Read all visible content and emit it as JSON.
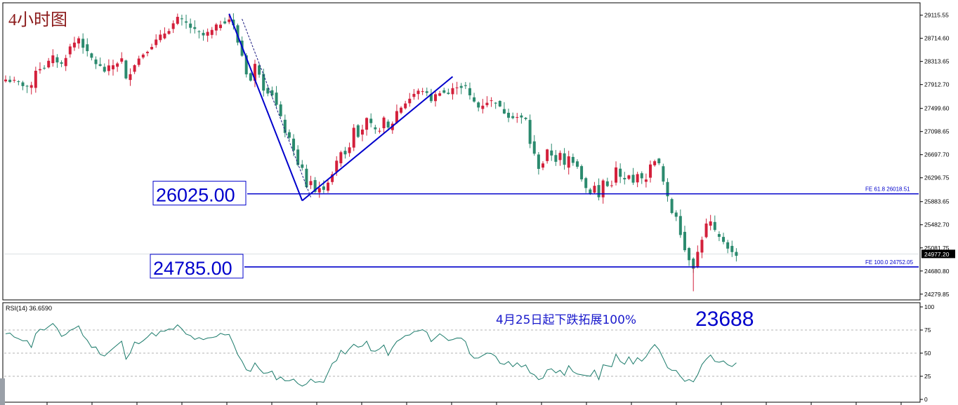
{
  "chart_data": {
    "type": "candlestick",
    "title": "4小时图",
    "price_axis": {
      "ticks": [
        "29115.55",
        "28714.60",
        "28313.65",
        "27912.70",
        "27499.60",
        "27098.65",
        "26697.70",
        "26296.75",
        "25883.65",
        "25482.70",
        "25081.75",
        "24680.80",
        "24279.85"
      ],
      "range": [
        24180,
        29330
      ],
      "current_price": "24977.20",
      "current_value": 24977.2
    },
    "fe_levels": [
      {
        "label": "FE 61.8  26018.51",
        "value": 26018.51,
        "box_label": "26025.00"
      },
      {
        "label": "FE 100.0  24752.05",
        "value": 24752.05,
        "box_label": "24785.00"
      }
    ],
    "annotation": "4月25日起下跌拓展100%",
    "target_label": "23688",
    "price_path": [
      [
        0,
        28000
      ],
      [
        3,
        27940
      ],
      [
        5,
        27880
      ],
      [
        6,
        27860
      ],
      [
        7,
        28180
      ],
      [
        9,
        28220
      ],
      [
        11,
        28380
      ],
      [
        13,
        28260
      ],
      [
        15,
        28560
      ],
      [
        17,
        28720
      ],
      [
        19,
        28450
      ],
      [
        21,
        28280
      ],
      [
        23,
        28150
      ],
      [
        25,
        28250
      ],
      [
        27,
        28350
      ],
      [
        28,
        27990
      ],
      [
        30,
        28280
      ],
      [
        32,
        28450
      ],
      [
        34,
        28600
      ],
      [
        36,
        28740
      ],
      [
        38,
        28880
      ],
      [
        40,
        29050
      ],
      [
        42,
        28970
      ],
      [
        44,
        28840
      ],
      [
        46,
        28760
      ],
      [
        48,
        28840
      ],
      [
        50,
        28980
      ],
      [
        52,
        29050
      ],
      [
        53,
        28920
      ],
      [
        54,
        28650
      ],
      [
        55,
        28420
      ],
      [
        56,
        28120
      ],
      [
        57,
        27980
      ],
      [
        58,
        28250
      ],
      [
        59,
        28120
      ],
      [
        60,
        27850
      ],
      [
        62,
        27750
      ],
      [
        63,
        27550
      ],
      [
        65,
        27100
      ],
      [
        67,
        26800
      ],
      [
        68,
        26500
      ],
      [
        69,
        26450
      ],
      [
        70,
        26150
      ],
      [
        71,
        26250
      ],
      [
        72,
        26050
      ],
      [
        73,
        26150
      ],
      [
        74,
        26050
      ],
      [
        75,
        26250
      ],
      [
        76,
        26380
      ],
      [
        77,
        26550
      ],
      [
        78,
        26780
      ],
      [
        79,
        26720
      ],
      [
        80,
        26850
      ],
      [
        81,
        27200
      ],
      [
        82,
        27050
      ],
      [
        83,
        27150
      ],
      [
        84,
        27300
      ],
      [
        85,
        27200
      ],
      [
        86,
        27100
      ],
      [
        87,
        27150
      ],
      [
        88,
        27300
      ],
      [
        89,
        27150
      ],
      [
        90,
        27250
      ],
      [
        91,
        27450
      ],
      [
        93,
        27600
      ],
      [
        95,
        27750
      ],
      [
        97,
        27820
      ],
      [
        99,
        27650
      ],
      [
        101,
        27800
      ],
      [
        103,
        27750
      ],
      [
        105,
        27900
      ],
      [
        106,
        27880
      ],
      [
        107,
        27870
      ],
      [
        108,
        27700
      ],
      [
        110,
        27520
      ],
      [
        112,
        27620
      ],
      [
        114,
        27620
      ],
      [
        115,
        27500
      ],
      [
        117,
        27380
      ],
      [
        119,
        27350
      ],
      [
        121,
        27300
      ],
      [
        122,
        26900
      ],
      [
        124,
        26480
      ],
      [
        125,
        26560
      ],
      [
        126,
        26750
      ],
      [
        127,
        26700
      ],
      [
        128,
        26600
      ],
      [
        129,
        26700
      ],
      [
        130,
        26500
      ],
      [
        131,
        26660
      ],
      [
        133,
        26520
      ],
      [
        134,
        26300
      ],
      [
        135,
        26120
      ],
      [
        136,
        26050
      ],
      [
        137,
        26150
      ],
      [
        138,
        25950
      ],
      [
        139,
        26250
      ],
      [
        140,
        26150
      ],
      [
        141,
        26200
      ],
      [
        142,
        26450
      ],
      [
        143,
        26300
      ],
      [
        144,
        26250
      ],
      [
        145,
        26320
      ],
      [
        146,
        26200
      ],
      [
        147,
        26400
      ],
      [
        148,
        26250
      ],
      [
        149,
        26300
      ],
      [
        150,
        26500
      ],
      [
        151,
        26620
      ],
      [
        152,
        26520
      ],
      [
        153,
        26220
      ],
      [
        154,
        25940
      ],
      [
        155,
        25700
      ],
      [
        156,
        25650
      ],
      [
        158,
        25050
      ],
      [
        159,
        24900
      ],
      [
        160,
        24760
      ],
      [
        161,
        25000
      ],
      [
        162,
        25250
      ],
      [
        163,
        25480
      ],
      [
        164,
        25520
      ],
      [
        165,
        25350
      ],
      [
        166,
        25250
      ],
      [
        167,
        25200
      ],
      [
        168,
        25100
      ],
      [
        169,
        24990
      ],
      [
        170,
        24977
      ]
    ],
    "drawn_lines": [
      {
        "name": "down-trend-line",
        "points": [
          [
            52,
            29140
          ],
          [
            69,
            25900
          ]
        ]
      },
      {
        "name": "up-trend-line",
        "points": [
          [
            69,
            25900
          ],
          [
            104,
            28050
          ]
        ]
      },
      {
        "name": "dashed-trend-line",
        "points": [
          [
            55,
            29050
          ],
          [
            71,
            25960
          ]
        ]
      }
    ],
    "rsi": {
      "label": "RSI(14) 36.6590",
      "ticks": [
        "100",
        "75",
        "50",
        "25",
        "0"
      ],
      "levels": [
        75,
        50,
        25
      ],
      "values": [
        [
          0,
          70
        ],
        [
          3,
          68
        ],
        [
          5,
          62
        ],
        [
          6,
          58
        ],
        [
          7,
          72
        ],
        [
          9,
          76
        ],
        [
          11,
          80
        ],
        [
          13,
          68
        ],
        [
          15,
          75
        ],
        [
          17,
          79
        ],
        [
          19,
          62
        ],
        [
          21,
          55
        ],
        [
          23,
          48
        ],
        [
          25,
          55
        ],
        [
          27,
          62
        ],
        [
          28,
          42
        ],
        [
          30,
          60
        ],
        [
          32,
          66
        ],
        [
          34,
          70
        ],
        [
          36,
          72
        ],
        [
          38,
          74
        ],
        [
          40,
          79
        ],
        [
          42,
          70
        ],
        [
          44,
          66
        ],
        [
          46,
          63
        ],
        [
          48,
          66
        ],
        [
          50,
          70
        ],
        [
          52,
          72
        ],
        [
          53,
          60
        ],
        [
          54,
          50
        ],
        [
          55,
          42
        ],
        [
          56,
          32
        ],
        [
          57,
          28
        ],
        [
          58,
          40
        ],
        [
          59,
          35
        ],
        [
          60,
          27
        ],
        [
          62,
          28
        ],
        [
          63,
          24
        ],
        [
          65,
          22
        ],
        [
          67,
          20
        ],
        [
          68,
          18
        ],
        [
          69,
          17
        ],
        [
          70,
          17
        ],
        [
          71,
          20
        ],
        [
          72,
          18
        ],
        [
          73,
          22
        ],
        [
          74,
          21
        ],
        [
          75,
          30
        ],
        [
          76,
          36
        ],
        [
          77,
          42
        ],
        [
          78,
          52
        ],
        [
          79,
          48
        ],
        [
          80,
          55
        ],
        [
          81,
          62
        ],
        [
          82,
          56
        ],
        [
          83,
          58
        ],
        [
          84,
          60
        ],
        [
          85,
          55
        ],
        [
          86,
          50
        ],
        [
          87,
          53
        ],
        [
          88,
          58
        ],
        [
          89,
          50
        ],
        [
          90,
          54
        ],
        [
          91,
          62
        ],
        [
          93,
          68
        ],
        [
          95,
          72
        ],
        [
          97,
          75
        ],
        [
          99,
          65
        ],
        [
          101,
          70
        ],
        [
          103,
          65
        ],
        [
          105,
          67
        ],
        [
          106,
          65
        ],
        [
          107,
          64
        ],
        [
          108,
          52
        ],
        [
          110,
          42
        ],
        [
          112,
          48
        ],
        [
          114,
          47
        ],
        [
          115,
          40
        ],
        [
          117,
          38
        ],
        [
          119,
          38
        ],
        [
          121,
          38
        ],
        [
          122,
          28
        ],
        [
          124,
          20
        ],
        [
          125,
          24
        ],
        [
          126,
          34
        ],
        [
          127,
          33
        ],
        [
          128,
          30
        ],
        [
          129,
          34
        ],
        [
          130,
          28
        ],
        [
          131,
          34
        ],
        [
          133,
          30
        ],
        [
          134,
          26
        ],
        [
          135,
          24
        ],
        [
          136,
          24
        ],
        [
          137,
          30
        ],
        [
          138,
          22
        ],
        [
          139,
          38
        ],
        [
          140,
          34
        ],
        [
          141,
          36
        ],
        [
          142,
          48
        ],
        [
          143,
          42
        ],
        [
          144,
          40
        ],
        [
          145,
          44
        ],
        [
          146,
          38
        ],
        [
          147,
          47
        ],
        [
          148,
          42
        ],
        [
          149,
          44
        ],
        [
          150,
          52
        ],
        [
          151,
          58
        ],
        [
          152,
          52
        ],
        [
          153,
          44
        ],
        [
          154,
          36
        ],
        [
          155,
          30
        ],
        [
          156,
          30
        ],
        [
          158,
          22
        ],
        [
          159,
          20
        ],
        [
          160,
          19
        ],
        [
          161,
          28
        ],
        [
          162,
          40
        ],
        [
          163,
          46
        ],
        [
          164,
          47
        ],
        [
          165,
          43
        ],
        [
          166,
          40
        ],
        [
          167,
          40
        ],
        [
          168,
          38
        ],
        [
          169,
          37
        ],
        [
          170,
          37
        ]
      ]
    },
    "colors": {
      "bull": "#d3203b",
      "bear": "#2b8a6e",
      "line": "#0000cc",
      "rsi": "#1a7a6a",
      "title": "#8b1a1a",
      "current_price_bg": "#000000"
    }
  }
}
